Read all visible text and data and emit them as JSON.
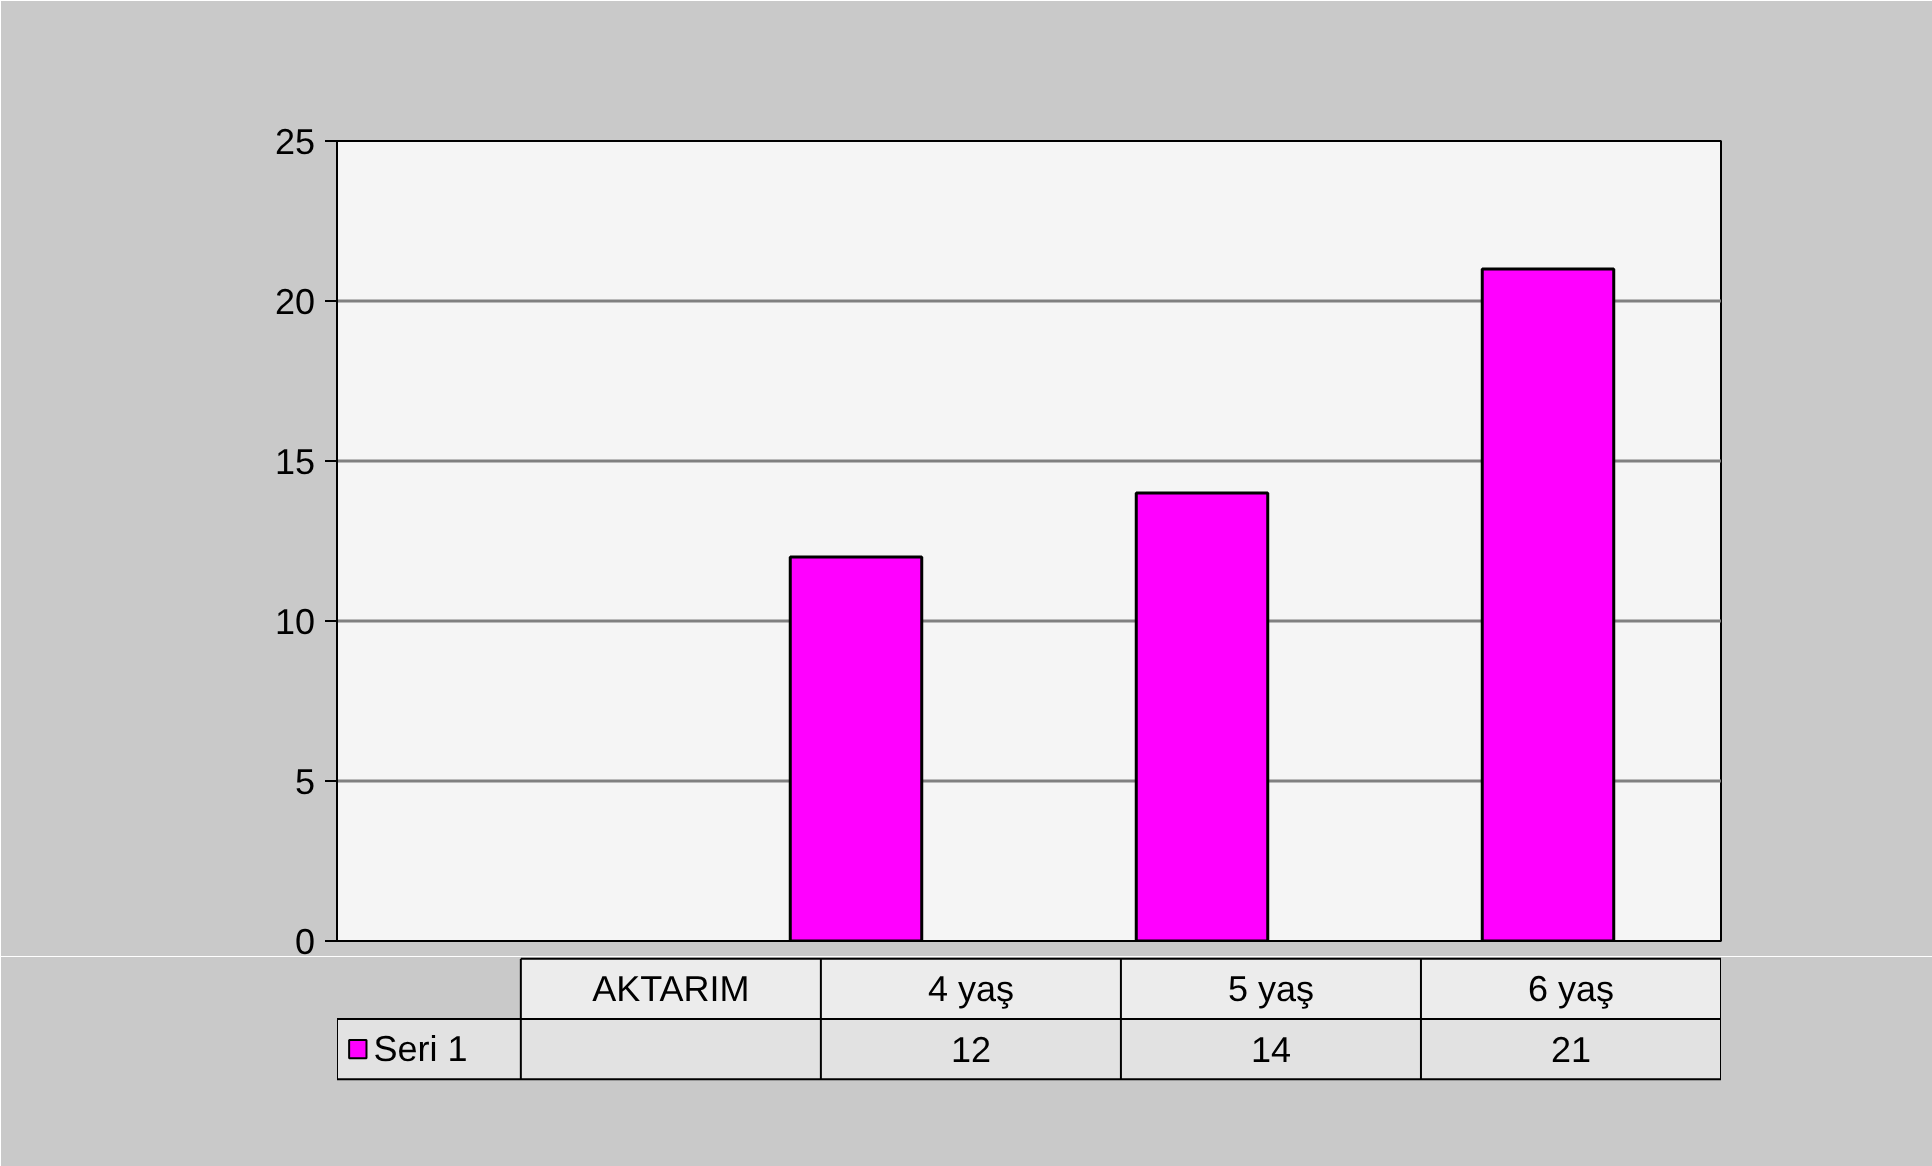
{
  "chart_data": {
    "type": "bar",
    "categories": [
      "AKTARIM",
      "4 yaş",
      "5 yaş",
      "6 yaş"
    ],
    "series": [
      {
        "name": "Seri 1",
        "color": "#ff00ff",
        "values": [
          null,
          12,
          14,
          21
        ]
      }
    ],
    "ylim": [
      0,
      25
    ],
    "yticks": [
      0,
      5,
      10,
      15,
      20,
      25
    ],
    "grid": "y",
    "legend": "bottom",
    "data_labels": true
  }
}
